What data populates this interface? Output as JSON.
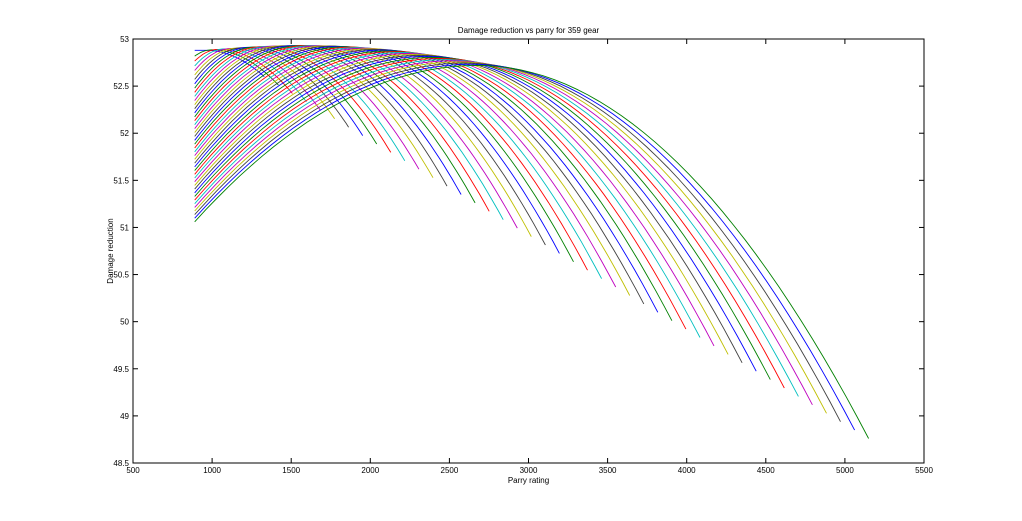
{
  "chart_data": {
    "type": "line",
    "title": "Damage reduction vs parry for 359 gear",
    "xlabel": "Parry rating",
    "ylabel": "Damage reduction",
    "xlim": [
      500,
      5500
    ],
    "ylim": [
      48.5,
      53
    ],
    "xticks": [
      "500",
      "1000",
      "1500",
      "2000",
      "2500",
      "3000",
      "3500",
      "4000",
      "4500",
      "5000",
      "5500"
    ],
    "yticks": [
      "48.5",
      "49",
      "49.5",
      "50",
      "50.5",
      "51",
      "51.5",
      "52",
      "52.5",
      "53"
    ],
    "grid": false,
    "legend": "none",
    "curve_family": {
      "x_start": 890,
      "count": 44,
      "x_end": {
        "first": 1330,
        "last": 5150
      },
      "y_at_start": {
        "first": 52.88,
        "last": 51.06
      },
      "peak": {
        "first": {
          "x": 960,
          "y": 52.88
        },
        "last": {
          "x": 2680,
          "y": 52.72
        }
      },
      "y_at_end": {
        "first": 52.6,
        "last": 48.76
      }
    },
    "series_colors": [
      "#0000ff",
      "#008000",
      "#ff0000",
      "#00bfbf",
      "#bf00bf",
      "#bfbf00",
      "#404040"
    ]
  }
}
